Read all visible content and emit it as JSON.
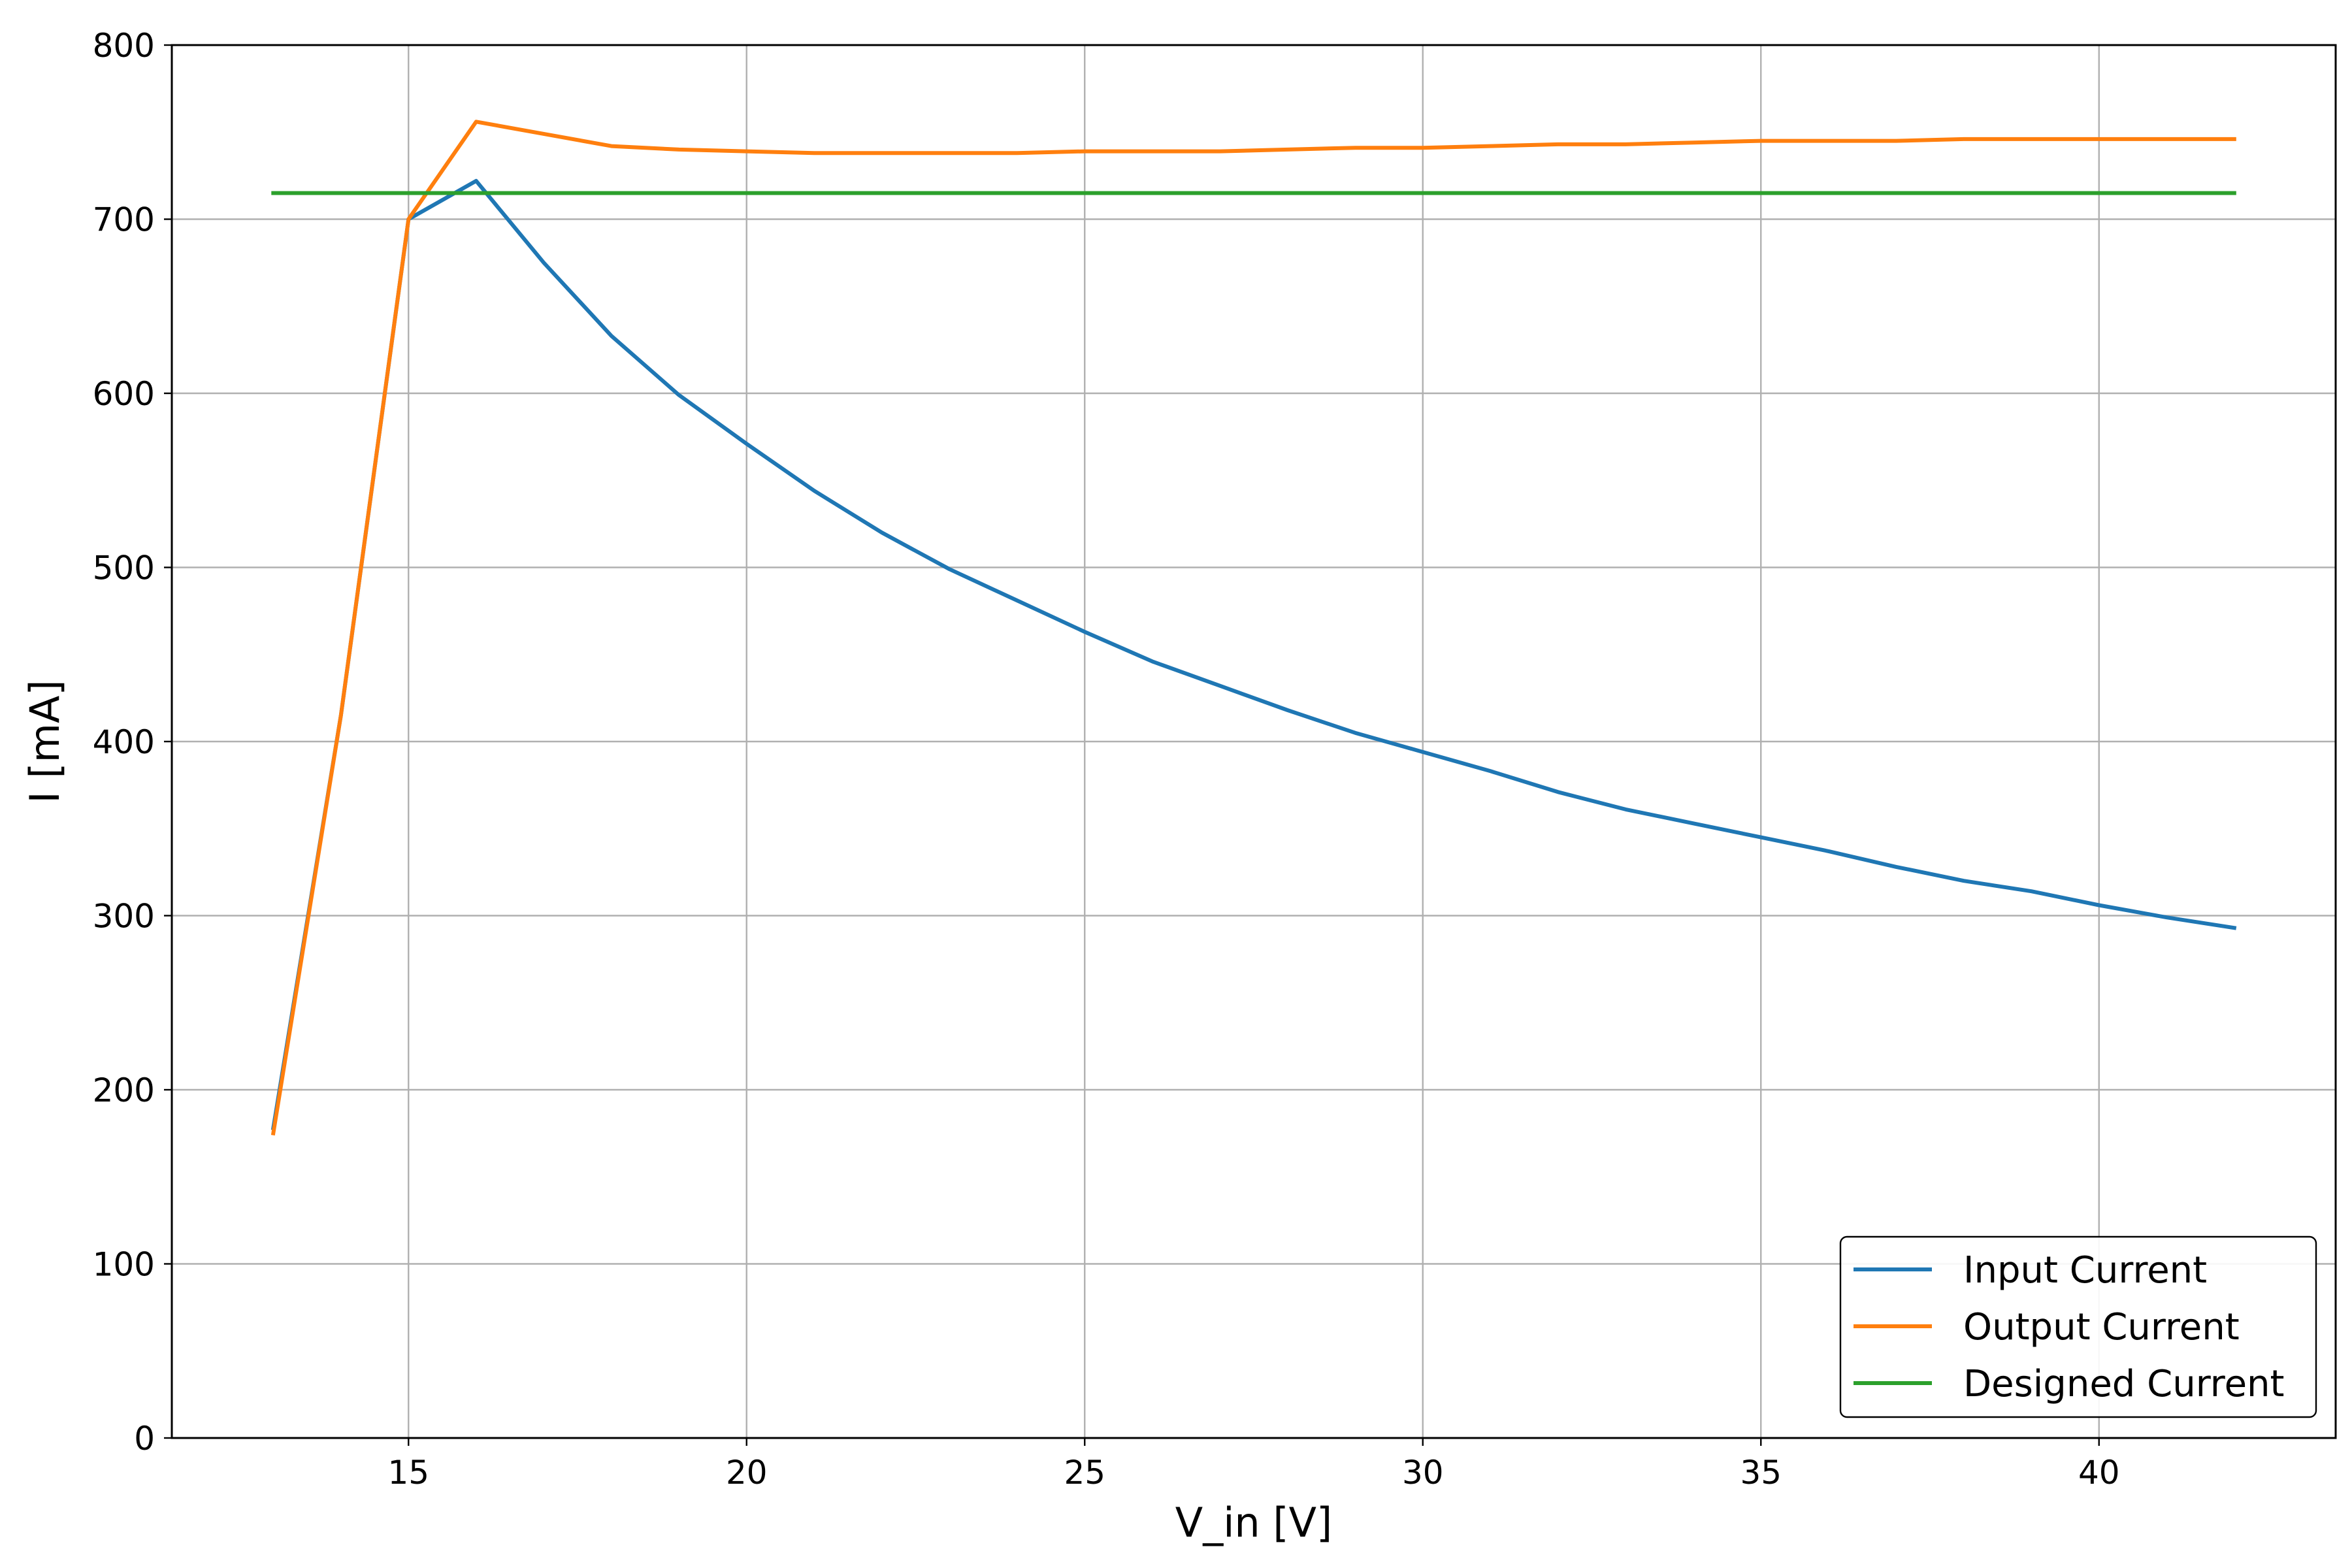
{
  "chart_data": {
    "type": "line",
    "xlabel": "V_in [V]",
    "ylabel": "I [mA]",
    "xlim": [
      11.5,
      43.5
    ],
    "ylim": [
      0,
      800
    ],
    "xticks": [
      15,
      20,
      25,
      30,
      35,
      40
    ],
    "yticks": [
      0,
      100,
      200,
      300,
      400,
      500,
      600,
      700,
      800
    ],
    "grid": true,
    "legend_position": "lower-right",
    "series": [
      {
        "name": "Input Current",
        "color": "#1f77b4",
        "x": [
          13,
          14,
          15,
          16,
          17,
          18,
          19,
          20,
          21,
          22,
          23,
          24,
          25,
          26,
          27,
          28,
          29,
          30,
          31,
          32,
          33,
          34,
          35,
          36,
          37,
          38,
          39,
          40,
          41,
          42
        ],
        "y": [
          178,
          415,
          700,
          722,
          675,
          633,
          599,
          571,
          544,
          520,
          499,
          481,
          463,
          446,
          432,
          418,
          405,
          394,
          383,
          371,
          361,
          353,
          345,
          337,
          328,
          320,
          314,
          306,
          299,
          293
        ]
      },
      {
        "name": "Output Current",
        "color": "#ff7f0e",
        "x": [
          13,
          14,
          15,
          16,
          17,
          18,
          19,
          20,
          21,
          22,
          23,
          24,
          25,
          26,
          27,
          28,
          29,
          30,
          31,
          32,
          33,
          34,
          35,
          36,
          37,
          38,
          39,
          40,
          41,
          42
        ],
        "y": [
          175,
          415,
          700,
          756,
          749,
          742,
          740,
          739,
          738,
          738,
          738,
          738,
          739,
          739,
          739,
          740,
          741,
          741,
          742,
          743,
          743,
          744,
          745,
          745,
          745,
          746,
          746,
          746,
          746,
          746
        ]
      },
      {
        "name": "Designed Current",
        "color": "#2ca02c",
        "x": [
          13,
          42
        ],
        "y": [
          715,
          715
        ]
      }
    ]
  }
}
